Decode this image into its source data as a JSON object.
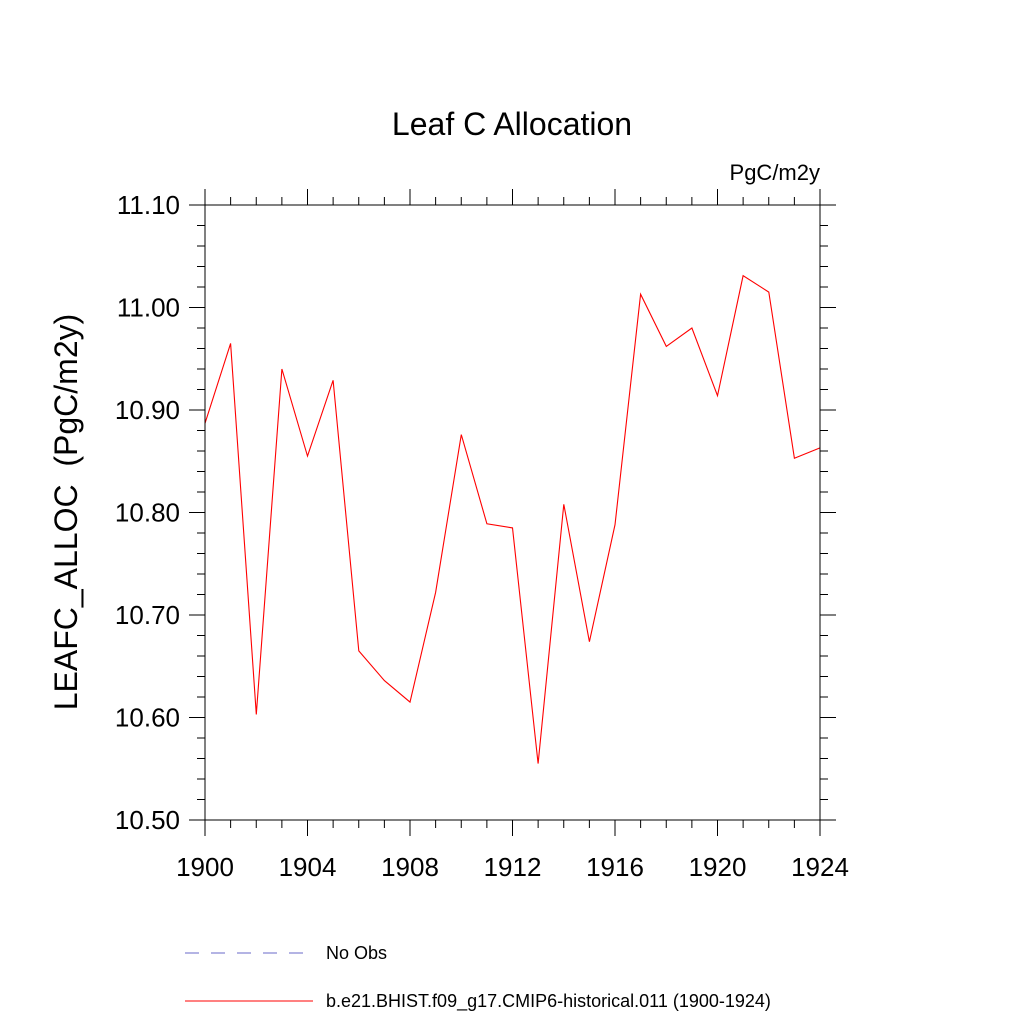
{
  "chart_data": {
    "type": "line",
    "title": "Leaf C Allocation",
    "units_label": "PgC/m2y",
    "ylabel": "LEAFC_ALLOC  (PgC/m2y)",
    "xlabel": "",
    "xlim": [
      1900,
      1924
    ],
    "ylim": [
      10.5,
      11.1
    ],
    "x_ticks": [
      "1900",
      "1904",
      "1908",
      "1912",
      "1916",
      "1920",
      "1924"
    ],
    "y_ticks": [
      "10.50",
      "10.60",
      "10.70",
      "10.80",
      "10.90",
      "11.00",
      "11.10"
    ],
    "x": [
      1900,
      1901,
      1902,
      1903,
      1904,
      1905,
      1906,
      1907,
      1908,
      1909,
      1910,
      1911,
      1912,
      1913,
      1914,
      1915,
      1916,
      1917,
      1918,
      1919,
      1920,
      1921,
      1922,
      1923,
      1924
    ],
    "series": [
      {
        "name": "b.e21.BHIST.f09_g17.CMIP6-historical.011 (1900-1924)",
        "color": "#ff0000",
        "values": [
          10.887,
          10.965,
          10.603,
          10.94,
          10.855,
          10.929,
          10.665,
          10.636,
          10.615,
          10.722,
          10.876,
          10.789,
          10.785,
          10.555,
          10.808,
          10.674,
          10.788,
          11.013,
          10.962,
          10.98,
          10.914,
          11.031,
          11.015,
          10.853,
          10.863
        ]
      }
    ],
    "legend": [
      {
        "label": "No Obs",
        "color": "#6a6ac8",
        "style": "dashed"
      },
      {
        "label": "b.e21.BHIST.f09_g17.CMIP6-historical.011 (1900-1924)",
        "color": "#ff0000",
        "style": "solid"
      }
    ],
    "legend_position": "bottom",
    "grid": false
  }
}
